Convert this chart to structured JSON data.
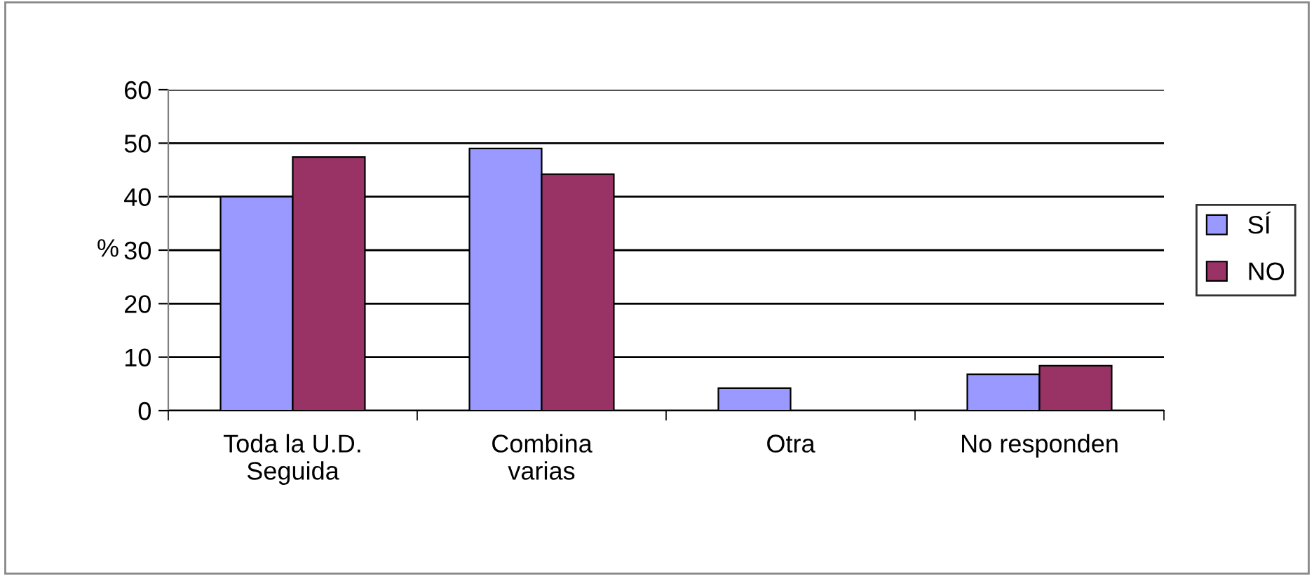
{
  "chart_data": {
    "type": "bar",
    "ylabel": "%",
    "categories": [
      "Toda la U.D.\nSeguida",
      "Combina\nvarias",
      "Otra",
      "No responden"
    ],
    "series": [
      {
        "name": "SÍ",
        "color": "#9999ff",
        "values": [
          40,
          49,
          4.2,
          6.8
        ]
      },
      {
        "name": "NO",
        "color": "#993366",
        "values": [
          47.4,
          44.2,
          null,
          8.4
        ]
      }
    ],
    "ylim": [
      0,
      60
    ],
    "yticks": [
      0,
      10,
      20,
      30,
      40,
      50,
      60
    ],
    "grid": "y",
    "legend": "right"
  }
}
